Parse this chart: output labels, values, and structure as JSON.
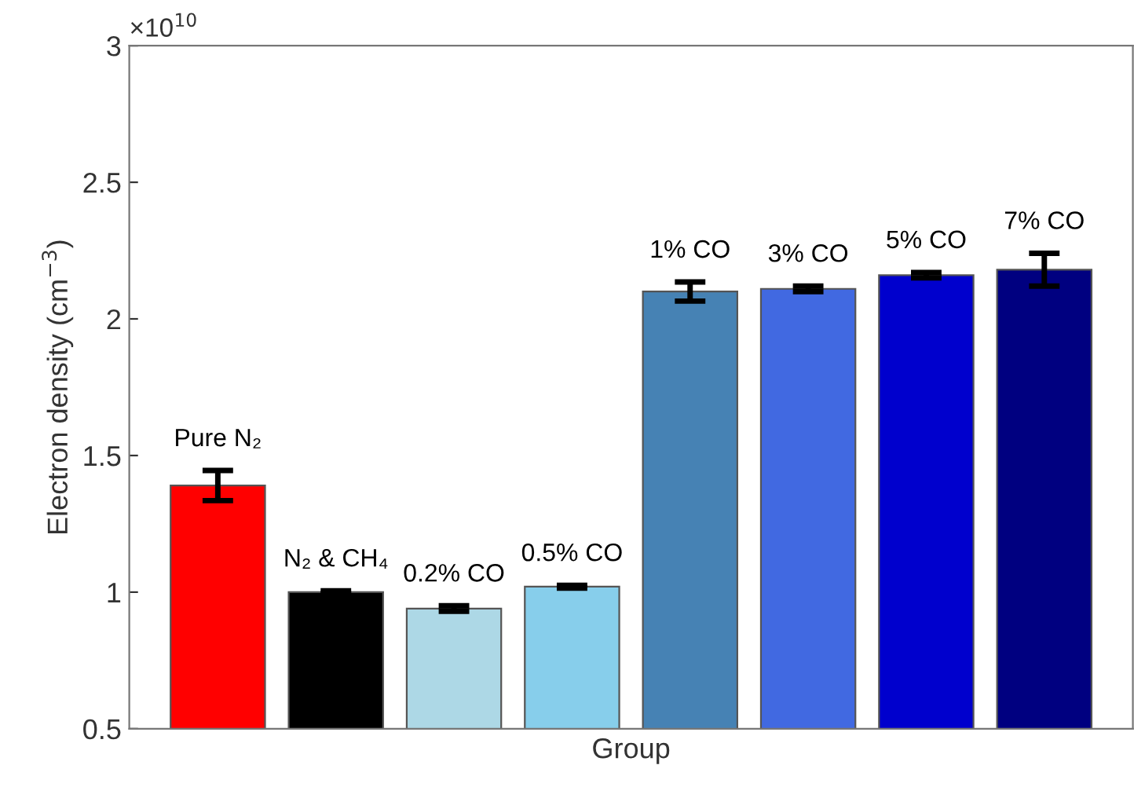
{
  "chart_data": {
    "type": "bar",
    "categories": [
      "Pure N₂",
      "N₂ & CH₄",
      "0.2% CO",
      "0.5% CO",
      "1% CO",
      "3% CO",
      "5% CO",
      "7% CO"
    ],
    "values": [
      1.39,
      1.0,
      0.94,
      1.02,
      2.1,
      2.11,
      2.16,
      2.18
    ],
    "errors": [
      0.055,
      0.005,
      0.01,
      0.005,
      0.035,
      0.01,
      0.01,
      0.06
    ],
    "colors": [
      "#ff0000",
      "#000000",
      "#add8e6",
      "#87ceeb",
      "#4682b4",
      "#4169e1",
      "#0000cd",
      "#000080"
    ],
    "xlabel": "Group",
    "ylabel": "Electron density (cm$^{−3}$)",
    "annotations": [
      "×10$^{10}$"
    ],
    "ylim": [
      0.5,
      3
    ],
    "yticks": [
      0.5,
      1,
      1.5,
      2,
      2.5,
      3
    ],
    "tick_labels": "y",
    "grid": false,
    "legend": false
  }
}
